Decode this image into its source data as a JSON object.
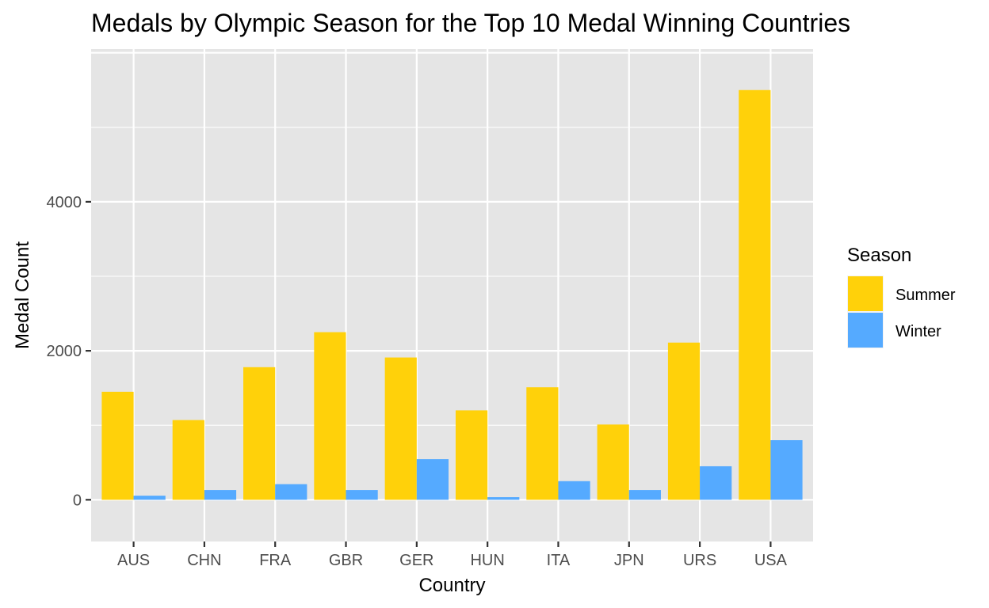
{
  "chart_data": {
    "type": "bar",
    "title": "Medals by Olympic Season for the Top 10 Medal Winning Countries",
    "xlabel": "Country",
    "ylabel": "Medal Count",
    "categories": [
      "AUS",
      "CHN",
      "FRA",
      "GBR",
      "GER",
      "HUN",
      "ITA",
      "JPN",
      "URS",
      "USA"
    ],
    "series": [
      {
        "name": "Summer",
        "color": "#FFD10A",
        "values": [
          1450,
          1070,
          1780,
          2250,
          1910,
          1200,
          1510,
          1010,
          2110,
          5500
        ]
      },
      {
        "name": "Winter",
        "color": "#55AAFF",
        "values": [
          55,
          130,
          210,
          130,
          545,
          35,
          250,
          130,
          450,
          800
        ]
      }
    ],
    "ylim": [
      -560,
      6050
    ],
    "yticks": [
      0,
      2000,
      4000
    ],
    "grid": true,
    "legend": {
      "title": "Season",
      "position": "right"
    },
    "panel_background": "#E5E5E5"
  }
}
